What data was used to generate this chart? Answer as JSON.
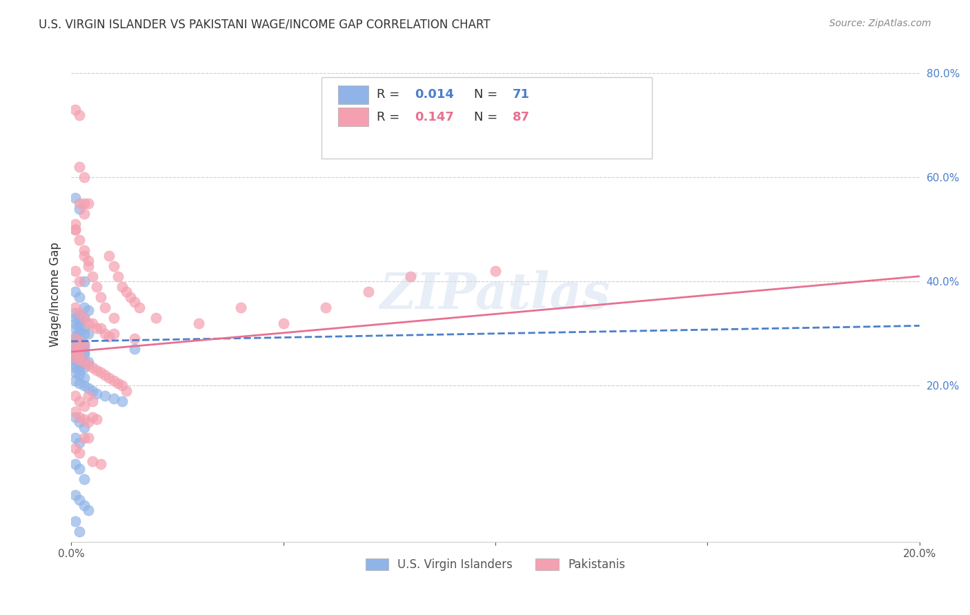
{
  "title": "U.S. VIRGIN ISLANDER VS PAKISTANI WAGE/INCOME GAP CORRELATION CHART",
  "source": "Source: ZipAtlas.com",
  "ylabel": "Wage/Income Gap",
  "xlim": [
    0.0,
    0.2
  ],
  "ylim": [
    -0.1,
    0.85
  ],
  "ytick_right": [
    0.2,
    0.4,
    0.6,
    0.8
  ],
  "ytick_right_labels": [
    "20.0%",
    "40.0%",
    "60.0%",
    "80.0%"
  ],
  "blue_color": "#91b4e8",
  "pink_color": "#f4a0b0",
  "blue_line_color": "#4a7fcb",
  "pink_line_color": "#e87090",
  "legend_R_blue": "0.014",
  "legend_N_blue": "71",
  "legend_R_pink": "0.147",
  "legend_N_pink": "87",
  "legend_label_blue": "U.S. Virgin Islanders",
  "legend_label_pink": "Pakistanis",
  "watermark": "ZIPatlas",
  "blue_scatter_x": [
    0.001,
    0.002,
    0.003,
    0.001,
    0.002,
    0.003,
    0.004,
    0.001,
    0.002,
    0.003,
    0.001,
    0.002,
    0.001,
    0.002,
    0.003,
    0.001,
    0.002,
    0.003,
    0.004,
    0.001,
    0.002,
    0.001,
    0.002,
    0.003,
    0.001,
    0.002,
    0.003,
    0.001,
    0.002,
    0.003,
    0.001,
    0.002,
    0.003,
    0.001,
    0.002,
    0.001,
    0.002,
    0.003,
    0.004,
    0.001,
    0.002,
    0.003,
    0.001,
    0.002,
    0.001,
    0.002,
    0.003,
    0.001,
    0.002,
    0.003,
    0.004,
    0.005,
    0.006,
    0.008,
    0.01,
    0.012,
    0.015,
    0.001,
    0.002,
    0.003,
    0.001,
    0.002,
    0.001,
    0.002,
    0.001,
    0.002,
    0.003,
    0.004,
    0.001,
    0.002,
    0.003
  ],
  "blue_scatter_y": [
    0.56,
    0.54,
    0.4,
    0.38,
    0.37,
    0.35,
    0.345,
    0.34,
    0.335,
    0.33,
    0.33,
    0.325,
    0.32,
    0.315,
    0.31,
    0.31,
    0.305,
    0.3,
    0.3,
    0.295,
    0.295,
    0.29,
    0.285,
    0.28,
    0.28,
    0.275,
    0.275,
    0.27,
    0.27,
    0.265,
    0.265,
    0.26,
    0.26,
    0.255,
    0.255,
    0.25,
    0.25,
    0.245,
    0.245,
    0.24,
    0.24,
    0.235,
    0.235,
    0.23,
    0.225,
    0.22,
    0.215,
    0.21,
    0.205,
    0.2,
    0.195,
    0.19,
    0.185,
    0.18,
    0.175,
    0.17,
    0.27,
    0.14,
    0.13,
    0.12,
    0.1,
    0.09,
    0.05,
    0.04,
    -0.01,
    -0.02,
    -0.03,
    -0.04,
    -0.06,
    -0.08,
    0.02
  ],
  "pink_scatter_x": [
    0.001,
    0.002,
    0.003,
    0.001,
    0.002,
    0.003,
    0.004,
    0.001,
    0.002,
    0.003,
    0.001,
    0.002,
    0.003,
    0.004,
    0.001,
    0.002,
    0.003,
    0.004,
    0.005,
    0.006,
    0.007,
    0.008,
    0.009,
    0.01,
    0.011,
    0.012,
    0.013,
    0.014,
    0.015,
    0.016,
    0.001,
    0.002,
    0.003,
    0.004,
    0.005,
    0.006,
    0.007,
    0.008,
    0.009,
    0.01,
    0.001,
    0.002,
    0.003,
    0.001,
    0.002,
    0.001,
    0.002,
    0.001,
    0.002,
    0.003,
    0.004,
    0.005,
    0.006,
    0.007,
    0.008,
    0.009,
    0.01,
    0.011,
    0.012,
    0.013,
    0.001,
    0.002,
    0.003,
    0.004,
    0.005,
    0.001,
    0.002,
    0.003,
    0.004,
    0.005,
    0.01,
    0.015,
    0.02,
    0.03,
    0.04,
    0.05,
    0.06,
    0.07,
    0.08,
    0.1,
    0.001,
    0.002,
    0.003,
    0.004,
    0.005,
    0.006,
    0.007
  ],
  "pink_scatter_y": [
    0.73,
    0.72,
    0.55,
    0.5,
    0.62,
    0.6,
    0.55,
    0.5,
    0.55,
    0.53,
    0.51,
    0.48,
    0.46,
    0.44,
    0.42,
    0.4,
    0.45,
    0.43,
    0.41,
    0.39,
    0.37,
    0.35,
    0.45,
    0.43,
    0.41,
    0.39,
    0.38,
    0.37,
    0.36,
    0.35,
    0.35,
    0.34,
    0.33,
    0.32,
    0.32,
    0.31,
    0.31,
    0.3,
    0.295,
    0.3,
    0.29,
    0.285,
    0.28,
    0.275,
    0.27,
    0.265,
    0.26,
    0.255,
    0.25,
    0.245,
    0.24,
    0.235,
    0.23,
    0.225,
    0.22,
    0.215,
    0.21,
    0.205,
    0.2,
    0.19,
    0.18,
    0.17,
    0.16,
    0.18,
    0.17,
    0.15,
    0.14,
    0.135,
    0.13,
    0.14,
    0.33,
    0.29,
    0.33,
    0.32,
    0.35,
    0.32,
    0.35,
    0.38,
    0.41,
    0.42,
    0.08,
    0.07,
    0.1,
    0.1,
    0.055,
    0.135,
    0.05
  ],
  "blue_trend_x": [
    0.0,
    0.2
  ],
  "blue_trend_y": [
    0.285,
    0.315
  ],
  "pink_trend_x": [
    0.0,
    0.2
  ],
  "pink_trend_y": [
    0.265,
    0.41
  ]
}
